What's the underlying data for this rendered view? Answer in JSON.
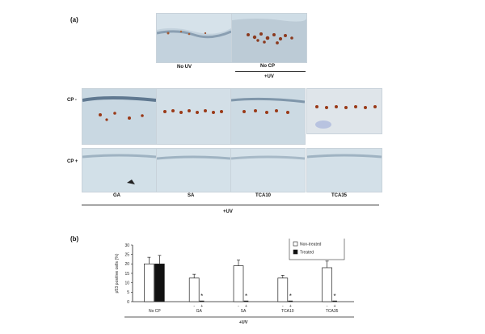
{
  "figure": {
    "panel_a_label": "(a)",
    "panel_b_label": "(b)",
    "top_labels": [
      "No UV",
      "No CP"
    ],
    "top_uv_label": "+UV",
    "row_labels": [
      "CP -",
      "CP +"
    ],
    "column_labels": [
      "GA",
      "SA",
      "TCA10",
      "TCA35"
    ],
    "bottom_uv_label": "+UV"
  },
  "chart_data": {
    "type": "bar",
    "ylabel": "p53 positive cells (%)",
    "ylim": [
      0,
      30
    ],
    "yticks": [
      0,
      5,
      10,
      15,
      20,
      25,
      30
    ],
    "groups": [
      "No CP",
      "GA",
      "SA",
      "TCA10",
      "TCA35"
    ],
    "sub_labels": [
      "-",
      "+"
    ],
    "series": [
      {
        "name": "Non-treated",
        "color": "#ffffff",
        "values": [
          20,
          12.5,
          19,
          12.5,
          18
        ],
        "errors": [
          3.5,
          2,
          3,
          1.5,
          3.5
        ]
      },
      {
        "name": "Treated",
        "color": "#111111",
        "values": [
          20,
          0.4,
          0.4,
          0.4,
          0.4
        ],
        "errors": [
          4.5,
          0.3,
          0.3,
          0.3,
          0.3
        ]
      }
    ],
    "annotations": [
      "*",
      "*",
      "*",
      "*"
    ],
    "xlabel": "+UV",
    "legend_position": "top-right"
  }
}
